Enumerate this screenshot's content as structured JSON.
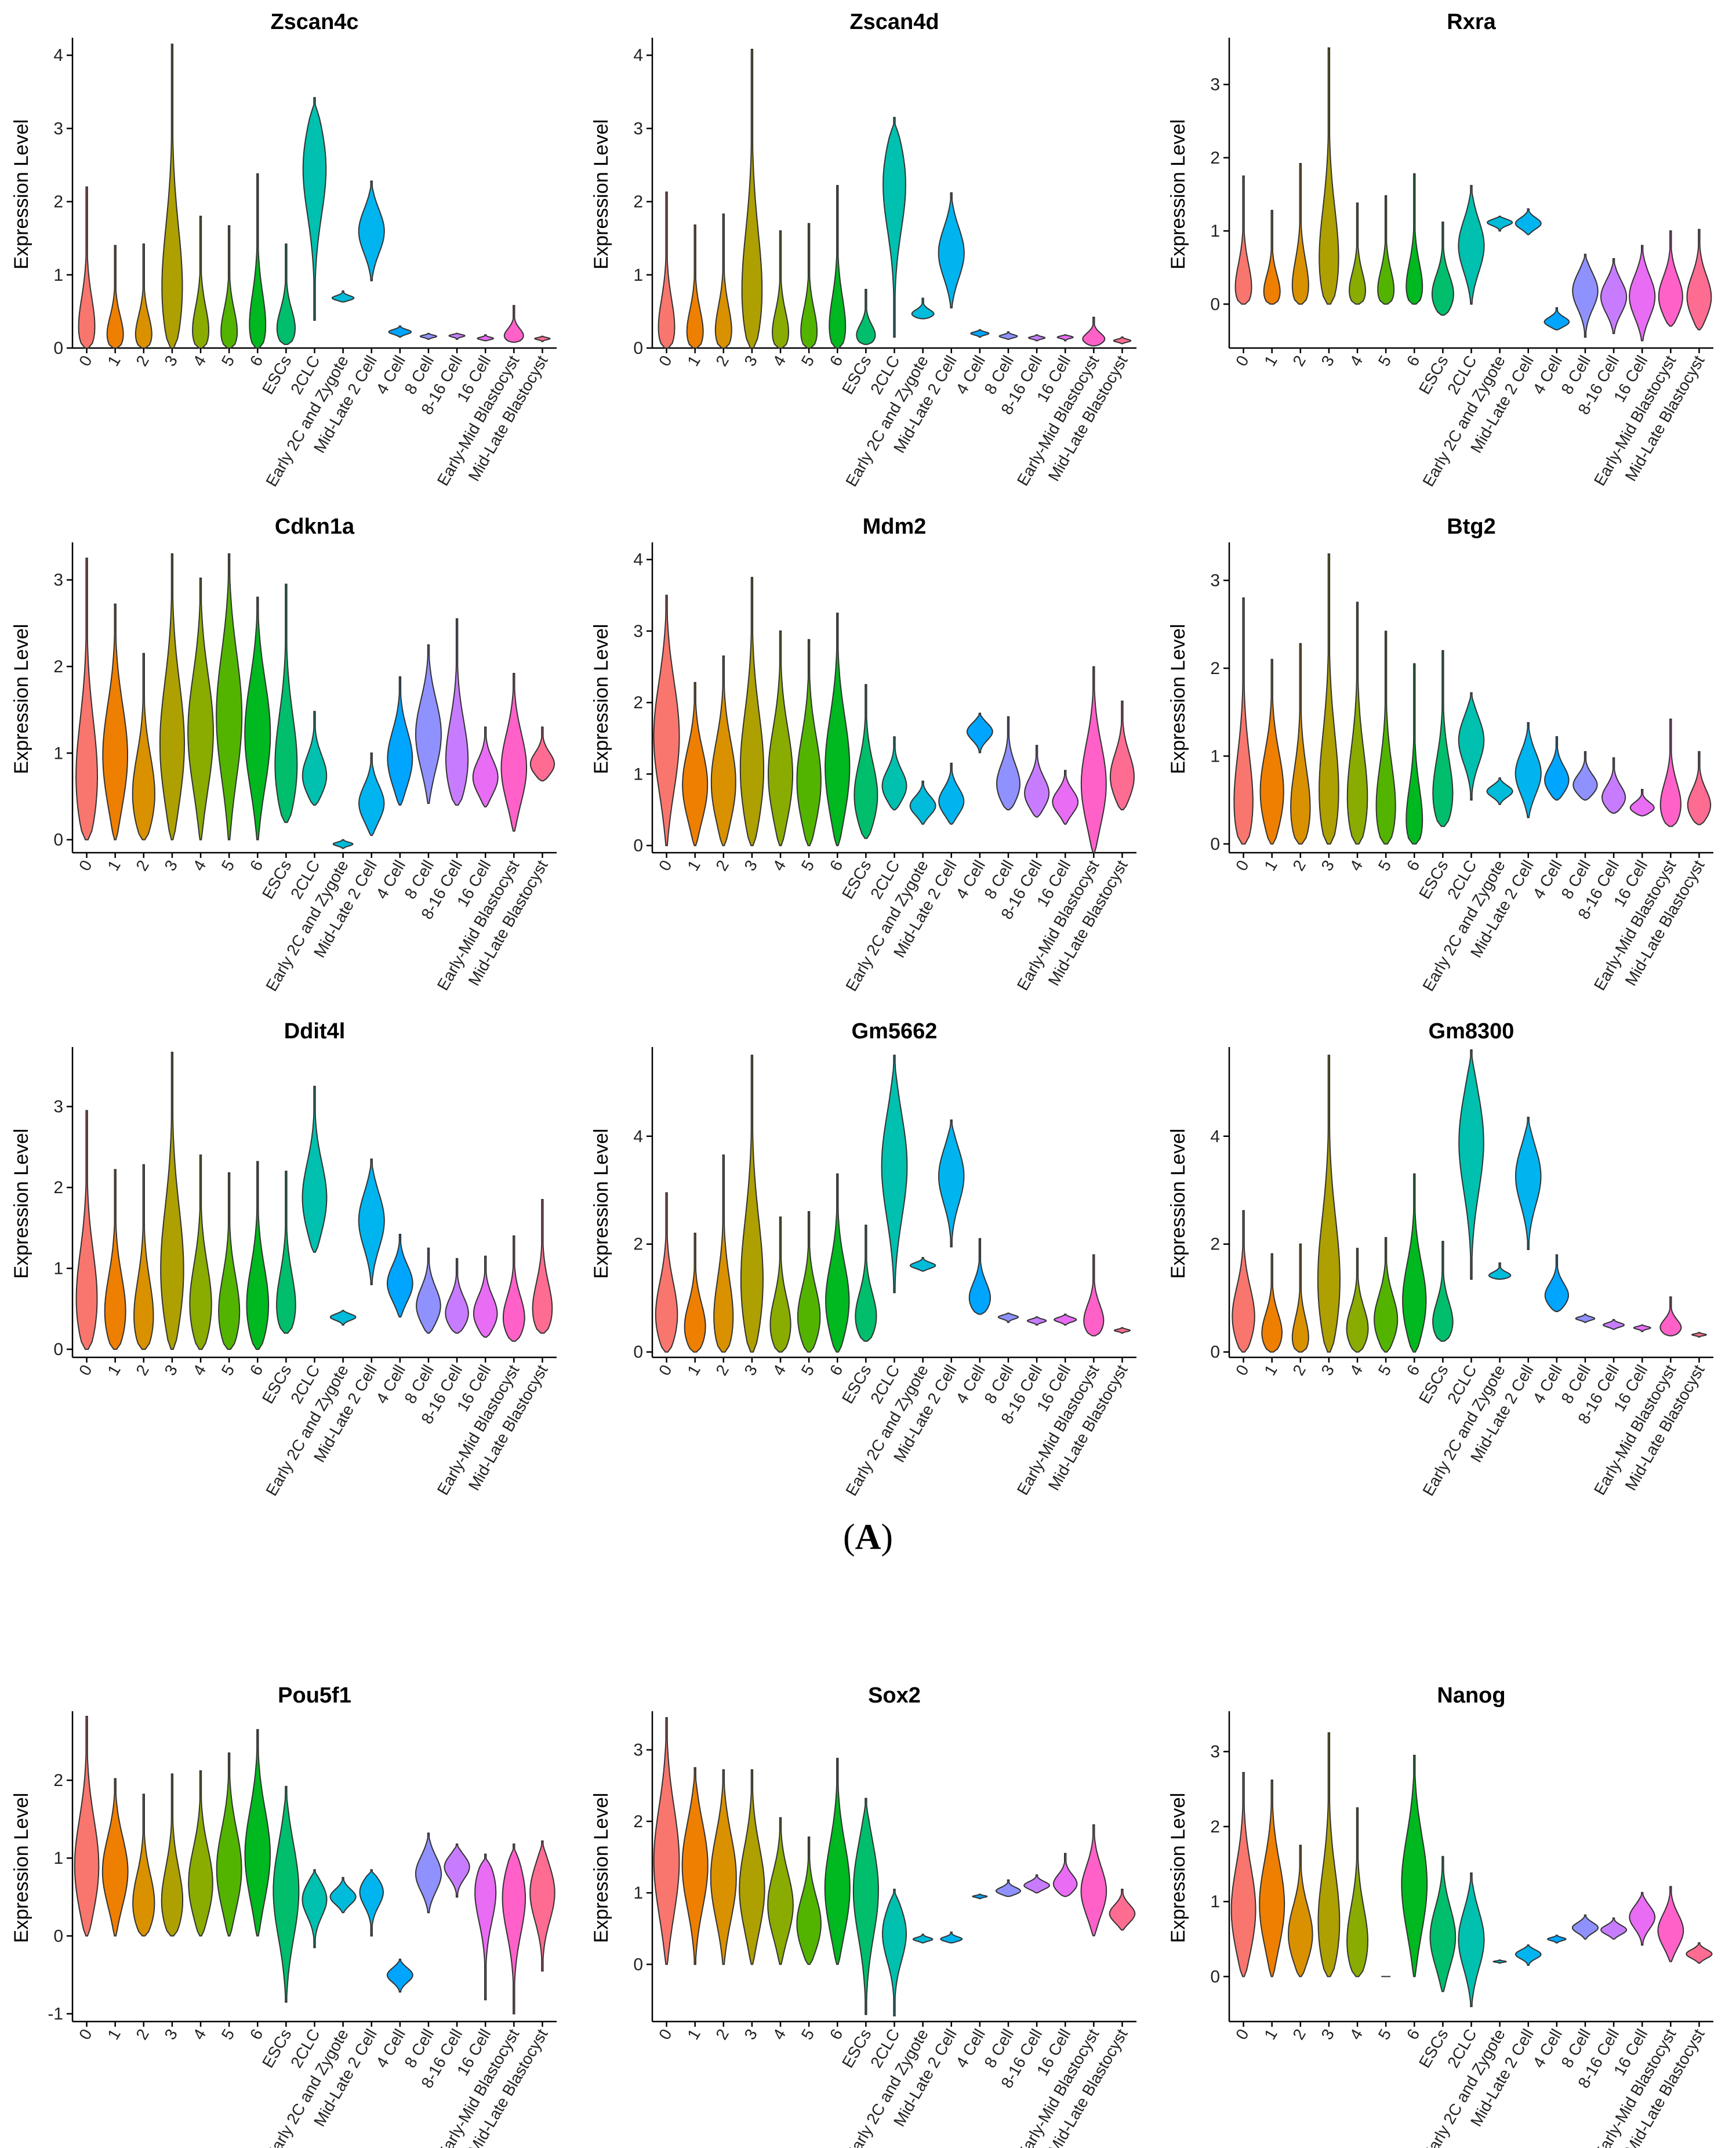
{
  "figure": {
    "panel_label_a": "A"
  },
  "chart_data": [
    {
      "type": "violin",
      "gene": "Zscan4c",
      "title": "Zscan4c",
      "ylabel": "Expression Level",
      "ylim": [
        0,
        4.2
      ],
      "yticks": [
        0,
        1,
        2,
        3,
        4
      ],
      "values": [
        [
          0,
          0,
          2.2
        ],
        [
          0,
          0,
          1.4
        ],
        [
          0,
          0,
          1.42
        ],
        [
          0,
          0.5,
          4.15
        ],
        [
          0,
          0,
          1.8
        ],
        [
          0,
          0,
          1.67
        ],
        [
          0,
          0,
          2.38
        ],
        [
          0.05,
          0.12,
          1.42
        ],
        [
          0.38,
          2.6,
          3.42
        ],
        [
          0.63,
          0.68,
          0.78
        ],
        [
          0.92,
          1.6,
          2.28
        ],
        [
          0.15,
          0.22,
          0.3
        ],
        [
          0.12,
          0.16,
          0.2
        ],
        [
          0.12,
          0.17,
          0.2
        ],
        [
          0.1,
          0.13,
          0.18
        ],
        [
          0.08,
          0.12,
          0.58
        ],
        [
          0.09,
          0.13,
          0.16
        ]
      ]
    },
    {
      "type": "violin",
      "gene": "Zscan4d",
      "title": "Zscan4d",
      "ylabel": "Expression Level",
      "ylim": [
        0,
        4.2
      ],
      "yticks": [
        0,
        1,
        2,
        3,
        4
      ],
      "values": [
        [
          0,
          0,
          2.13
        ],
        [
          0,
          0,
          1.68
        ],
        [
          0,
          0,
          1.83
        ],
        [
          0,
          0.45,
          4.08
        ],
        [
          0,
          0,
          1.6
        ],
        [
          0,
          0,
          1.7
        ],
        [
          0,
          0,
          2.22
        ],
        [
          0.05,
          0.1,
          0.8
        ],
        [
          0.15,
          2.4,
          3.15
        ],
        [
          0.4,
          0.45,
          0.68
        ],
        [
          0.55,
          1.3,
          2.12
        ],
        [
          0.15,
          0.2,
          0.25
        ],
        [
          0.12,
          0.16,
          0.22
        ],
        [
          0.1,
          0.14,
          0.18
        ],
        [
          0.1,
          0.15,
          0.18
        ],
        [
          0.03,
          0.1,
          0.42
        ],
        [
          0.06,
          0.1,
          0.15
        ]
      ]
    },
    {
      "type": "violin",
      "gene": "Rxra",
      "title": "Rxra",
      "ylabel": "Expression Level",
      "ylim": [
        -0.6,
        3.6
      ],
      "yticks": [
        0,
        1,
        2,
        3
      ],
      "values": [
        [
          0,
          0,
          1.75
        ],
        [
          0,
          0,
          1.28
        ],
        [
          0,
          0,
          1.92
        ],
        [
          0,
          0.3,
          3.5
        ],
        [
          0,
          0,
          1.38
        ],
        [
          0,
          0,
          1.48
        ],
        [
          0,
          0,
          1.78
        ],
        [
          -0.15,
          0.05,
          1.12
        ],
        [
          0,
          0.8,
          1.62
        ],
        [
          1.0,
          1.12,
          1.2
        ],
        [
          0.95,
          1.1,
          1.3
        ],
        [
          -0.35,
          -0.25,
          -0.05
        ],
        [
          -0.45,
          0.2,
          0.68
        ],
        [
          -0.4,
          0.1,
          0.62
        ],
        [
          -0.5,
          0.1,
          0.8
        ],
        [
          -0.3,
          0.05,
          1.0
        ],
        [
          -0.35,
          0.05,
          1.02
        ]
      ]
    },
    {
      "type": "violin",
      "gene": "Cdkn1a",
      "title": "Cdkn1a",
      "ylabel": "Expression Level",
      "ylim": [
        -0.15,
        3.4
      ],
      "yticks": [
        0,
        1,
        2,
        3
      ],
      "values": [
        [
          0,
          0.5,
          3.25
        ],
        [
          0,
          0.9,
          2.72
        ],
        [
          0,
          0.4,
          2.15
        ],
        [
          0,
          1.0,
          3.3
        ],
        [
          0,
          1.2,
          3.02
        ],
        [
          0,
          1.4,
          3.3
        ],
        [
          0,
          1.2,
          2.8
        ],
        [
          0.2,
          0.7,
          2.95
        ],
        [
          0.4,
          0.7,
          1.48
        ],
        [
          -0.1,
          -0.05,
          0
        ],
        [
          0.05,
          0.4,
          1.0
        ],
        [
          0.4,
          0.9,
          1.88
        ],
        [
          0.42,
          1.2,
          2.25
        ],
        [
          0.4,
          0.8,
          2.55
        ],
        [
          0.38,
          0.7,
          1.3
        ],
        [
          0.1,
          0.8,
          1.92
        ],
        [
          0.68,
          0.85,
          1.3
        ]
      ]
    },
    {
      "type": "violin",
      "gene": "Mdm2",
      "title": "Mdm2",
      "ylabel": "Expression Level",
      "ylim": [
        -0.1,
        4.2
      ],
      "yticks": [
        0,
        1,
        2,
        3,
        4
      ],
      "values": [
        [
          0,
          1.5,
          3.5
        ],
        [
          0,
          0.8,
          2.28
        ],
        [
          0,
          0.8,
          2.65
        ],
        [
          0,
          0.9,
          3.75
        ],
        [
          0,
          0.9,
          3.0
        ],
        [
          0,
          0.8,
          2.88
        ],
        [
          0,
          1.0,
          3.25
        ],
        [
          0.1,
          0.6,
          2.25
        ],
        [
          0.5,
          0.8,
          1.52
        ],
        [
          0.3,
          0.55,
          0.9
        ],
        [
          0.3,
          0.6,
          1.15
        ],
        [
          1.3,
          1.6,
          1.85
        ],
        [
          0.5,
          0.8,
          1.8
        ],
        [
          0.4,
          0.7,
          1.4
        ],
        [
          0.3,
          0.6,
          1.05
        ],
        [
          -0.1,
          0.8,
          2.5
        ],
        [
          0.5,
          0.9,
          2.02
        ]
      ]
    },
    {
      "type": "violin",
      "gene": "Btg2",
      "title": "Btg2",
      "ylabel": "Expression Level",
      "ylim": [
        -0.1,
        3.4
      ],
      "yticks": [
        0,
        1,
        2,
        3
      ],
      "values": [
        [
          0,
          0.2,
          2.8
        ],
        [
          0,
          0.5,
          2.1
        ],
        [
          0,
          0.2,
          2.28
        ],
        [
          0,
          0.3,
          3.3
        ],
        [
          0,
          0.3,
          2.75
        ],
        [
          0,
          0.2,
          2.42
        ],
        [
          0,
          0,
          2.05
        ],
        [
          0.2,
          0.4,
          2.2
        ],
        [
          0.5,
          1.2,
          1.72
        ],
        [
          0.45,
          0.6,
          0.75
        ],
        [
          0.3,
          0.8,
          1.38
        ],
        [
          0.5,
          0.7,
          1.22
        ],
        [
          0.5,
          0.65,
          1.05
        ],
        [
          0.35,
          0.5,
          0.98
        ],
        [
          0.32,
          0.4,
          0.62
        ],
        [
          0.2,
          0.35,
          1.42
        ],
        [
          0.22,
          0.4,
          1.05
        ]
      ]
    },
    {
      "type": "violin",
      "gene": "Ddit4l",
      "title": "Ddit4l",
      "ylabel": "Expression Level",
      "ylim": [
        -0.1,
        3.7
      ],
      "yticks": [
        0,
        1,
        2,
        3
      ],
      "values": [
        [
          0,
          0.4,
          2.95
        ],
        [
          0,
          0.3,
          2.22
        ],
        [
          0,
          0.2,
          2.28
        ],
        [
          0,
          0.8,
          3.67
        ],
        [
          0,
          0.4,
          2.4
        ],
        [
          0,
          0.3,
          2.18
        ],
        [
          0,
          0.4,
          2.32
        ],
        [
          0.2,
          0.35,
          2.2
        ],
        [
          1.2,
          1.8,
          3.25
        ],
        [
          0.3,
          0.4,
          0.48
        ],
        [
          0.8,
          1.6,
          2.35
        ],
        [
          0.4,
          0.8,
          1.42
        ],
        [
          0.2,
          0.5,
          1.25
        ],
        [
          0.2,
          0.4,
          1.12
        ],
        [
          0.15,
          0.4,
          1.15
        ],
        [
          0.1,
          0.3,
          1.4
        ],
        [
          0.2,
          0.35,
          1.85
        ]
      ]
    },
    {
      "type": "violin",
      "gene": "Gm5662",
      "title": "Gm5662",
      "ylabel": "Expression Level",
      "ylim": [
        -0.1,
        5.6
      ],
      "yticks": [
        0,
        2,
        4
      ],
      "values": [
        [
          0,
          0.5,
          2.95
        ],
        [
          0,
          0.3,
          2.2
        ],
        [
          0,
          0.3,
          3.65
        ],
        [
          0,
          1.0,
          5.5
        ],
        [
          0,
          0.3,
          2.5
        ],
        [
          0,
          0.5,
          2.6
        ],
        [
          0,
          0.8,
          3.3
        ],
        [
          0.2,
          0.5,
          2.35
        ],
        [
          1.1,
          3.5,
          5.5
        ],
        [
          1.5,
          1.6,
          1.75
        ],
        [
          1.95,
          3.3,
          4.3
        ],
        [
          0.7,
          0.9,
          2.1
        ],
        [
          0.55,
          0.65,
          0.72
        ],
        [
          0.5,
          0.58,
          0.65
        ],
        [
          0.5,
          0.6,
          0.7
        ],
        [
          0.3,
          0.45,
          1.8
        ],
        [
          0.35,
          0.4,
          0.45
        ]
      ]
    },
    {
      "type": "violin",
      "gene": "Gm8300",
      "title": "Gm8300",
      "ylabel": "Expression Level",
      "ylim": [
        -0.1,
        5.6
      ],
      "yticks": [
        0,
        2,
        4
      ],
      "values": [
        [
          0,
          0.5,
          2.62
        ],
        [
          0,
          0.2,
          1.82
        ],
        [
          0,
          0,
          2.0
        ],
        [
          0,
          1.0,
          5.5
        ],
        [
          0,
          0.3,
          1.92
        ],
        [
          0,
          0.5,
          2.12
        ],
        [
          0,
          0.8,
          3.3
        ],
        [
          0.2,
          0.4,
          2.05
        ],
        [
          1.35,
          4.0,
          5.6
        ],
        [
          1.35,
          1.4,
          1.65
        ],
        [
          1.9,
          3.3,
          4.35
        ],
        [
          0.75,
          1.0,
          1.8
        ],
        [
          0.55,
          0.62,
          0.7
        ],
        [
          0.42,
          0.5,
          0.6
        ],
        [
          0.38,
          0.45,
          0.5
        ],
        [
          0.3,
          0.4,
          1.02
        ],
        [
          0.28,
          0.32,
          0.36
        ]
      ]
    },
    {
      "type": "violin",
      "gene": "Pou5f1",
      "title": "Pou5f1",
      "ylabel": "Expression Level",
      "ylim": [
        -1.1,
        2.85
      ],
      "yticks": [
        -1,
        0,
        1,
        2
      ],
      "values": [
        [
          0,
          0.8,
          2.82
        ],
        [
          0,
          0.8,
          2.02
        ],
        [
          0,
          0.3,
          1.82
        ],
        [
          0,
          0.3,
          2.08
        ],
        [
          0,
          0.6,
          2.12
        ],
        [
          0,
          0.8,
          2.35
        ],
        [
          0,
          1.0,
          2.65
        ],
        [
          -0.85,
          0.6,
          1.92
        ],
        [
          -0.15,
          0.5,
          0.85
        ],
        [
          0.3,
          0.5,
          0.75
        ],
        [
          0,
          0.6,
          0.85
        ],
        [
          -0.72,
          -0.5,
          -0.3
        ],
        [
          0.3,
          0.8,
          1.32
        ],
        [
          0.5,
          0.9,
          1.18
        ],
        [
          -0.82,
          0.7,
          1.05
        ],
        [
          -1.0,
          0.6,
          1.18
        ],
        [
          -0.45,
          0.6,
          1.22
        ]
      ]
    },
    {
      "type": "violin",
      "gene": "Sox2",
      "title": "Sox2",
      "ylabel": "Expression Level",
      "ylim": [
        -0.8,
        3.5
      ],
      "yticks": [
        0,
        1,
        2,
        3
      ],
      "values": [
        [
          0,
          1.4,
          3.45
        ],
        [
          0,
          1.4,
          2.75
        ],
        [
          0,
          1.2,
          2.72
        ],
        [
          0,
          1.0,
          2.72
        ],
        [
          0,
          0.8,
          2.05
        ],
        [
          0,
          0.5,
          1.78
        ],
        [
          0,
          1.0,
          2.88
        ],
        [
          -0.7,
          1.1,
          2.32
        ],
        [
          -0.72,
          0.5,
          1.05
        ],
        [
          0.3,
          0.35,
          0.42
        ],
        [
          0.3,
          0.35,
          0.45
        ],
        [
          0.92,
          0.95,
          0.98
        ],
        [
          0.95,
          1.02,
          1.18
        ],
        [
          1.0,
          1.1,
          1.25
        ],
        [
          0.95,
          1.1,
          1.55
        ],
        [
          0.4,
          1.0,
          1.95
        ],
        [
          0.48,
          0.7,
          1.05
        ]
      ]
    },
    {
      "type": "violin",
      "gene": "Nanog",
      "title": "Nanog",
      "ylabel": "Expression Level",
      "ylim": [
        -0.6,
        3.5
      ],
      "yticks": [
        0,
        1,
        2,
        3
      ],
      "values": [
        [
          0,
          0.8,
          2.72
        ],
        [
          0,
          0.9,
          2.62
        ],
        [
          0,
          0.5,
          1.75
        ],
        [
          0,
          0.5,
          3.25
        ],
        [
          0,
          0.3,
          2.25
        ],
        [
          0,
          0,
          0
        ],
        [
          0,
          1.2,
          2.95
        ],
        [
          -0.2,
          0.5,
          1.6
        ],
        [
          -0.4,
          0.5,
          1.38
        ],
        [
          0.18,
          0.2,
          0.22
        ],
        [
          0.15,
          0.3,
          0.42
        ],
        [
          0.45,
          0.5,
          0.55
        ],
        [
          0.5,
          0.65,
          0.82
        ],
        [
          0.5,
          0.62,
          0.78
        ],
        [
          0.42,
          0.8,
          1.12
        ],
        [
          0.2,
          0.6,
          1.2
        ],
        [
          0.18,
          0.3,
          0.45
        ]
      ]
    }
  ],
  "categories": [
    "0",
    "1",
    "2",
    "3",
    "4",
    "5",
    "6",
    "ESCs",
    "2CLC",
    "Early 2C and Zygote",
    "Mid-Late 2 Cell",
    "4 Cell",
    "8 Cell",
    "8-16 Cell",
    "16 Cell",
    "Early-Mid Blastocyst",
    "Mid-Late Blastocyst"
  ],
  "colors": [
    "#F8766D",
    "#EF7F00",
    "#D99100",
    "#ADA000",
    "#8AAB00",
    "#53B400",
    "#00B81F",
    "#00BE6C",
    "#00C0AF",
    "#00BBD9",
    "#00B4EF",
    "#00A5FF",
    "#8F91FF",
    "#C77CFF",
    "#E86CF4",
    "#FF61C9",
    "#FF6C91"
  ]
}
